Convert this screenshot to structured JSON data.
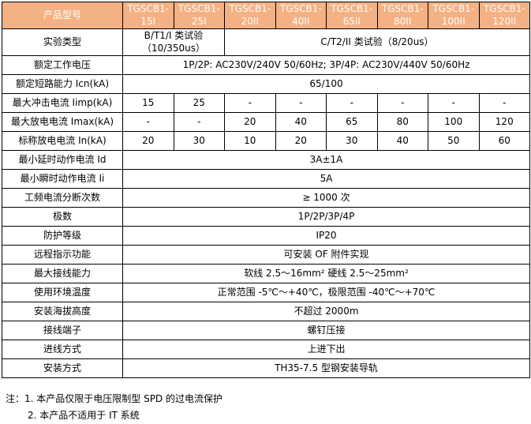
{
  "colors": {
    "header_bg": "#F4B183",
    "header_text": "#FFFFFF",
    "border": "#000000",
    "body_text": "#000000"
  },
  "header": {
    "label": "产品型号",
    "models": [
      "TGSCB1-15I",
      "TGSCB1-25I",
      "TGSCB1-20II",
      "TGSCB1-40II",
      "TGSCB1-65II",
      "TGSCB1-80II",
      "TGSCB1-100II",
      "TGSCB1-120II"
    ]
  },
  "rows": [
    {
      "label": "实验类型",
      "spans": [
        {
          "cols": 2,
          "text": "B/T1/I 类试验（10/350us）"
        },
        {
          "cols": 6,
          "text": "C/T2/II 类试验（8/20us）"
        }
      ]
    },
    {
      "label": "额定工作电压",
      "value": "1P/2P: AC230V/240V 50/60Hz; 3P/4P: AC230V/440V 50/60Hz"
    },
    {
      "label": "额定短路能力 Icn(kA)",
      "value": "65/100"
    },
    {
      "label": "最大冲击电流 Iimp(kA)",
      "cells": [
        "15",
        "25",
        "-",
        "-",
        "-",
        "-",
        "-",
        "-"
      ]
    },
    {
      "label": "最大放电电流 Imax(kA)",
      "cells": [
        "-",
        "-",
        "20",
        "40",
        "65",
        "80",
        "100",
        "120"
      ]
    },
    {
      "label": "标称放电电流 In(kA)",
      "cells": [
        "20",
        "30",
        "10",
        "20",
        "30",
        "40",
        "50",
        "60"
      ]
    },
    {
      "label": "最小延时动作电流 Id",
      "value": "3A±1A"
    },
    {
      "label": "最小瞬时动作电流 Ii",
      "value": "5A"
    },
    {
      "label": "工频电流分断次数",
      "value": "≥ 1000 次"
    },
    {
      "label": "极数",
      "value": "1P/2P/3P/4P"
    },
    {
      "label": "防护等级",
      "value": "IP20"
    },
    {
      "label": "远程指示功能",
      "value": "可安装 OF 附件实现"
    },
    {
      "label": "最大接线能力",
      "value": "软线 2.5～16mm² 硬线 2.5～25mm²"
    },
    {
      "label": "使用环境温度",
      "value": "正常范围 -5℃～+40℃，极限范围 -40℃～+70℃"
    },
    {
      "label": "安装海拔高度",
      "value": "不超过 2000m"
    },
    {
      "label": "接线端子",
      "value": "螺钉压接"
    },
    {
      "label": "进线方式",
      "value": "上进下出"
    },
    {
      "label": "安装方式",
      "value": "TH35-7.5 型钢安装导轨"
    }
  ],
  "notes": {
    "line1": "注：1. 本产品仅限于电压限制型 SPD 的过电流保护",
    "line2": "2. 本产品不适用于 IT 系统"
  }
}
